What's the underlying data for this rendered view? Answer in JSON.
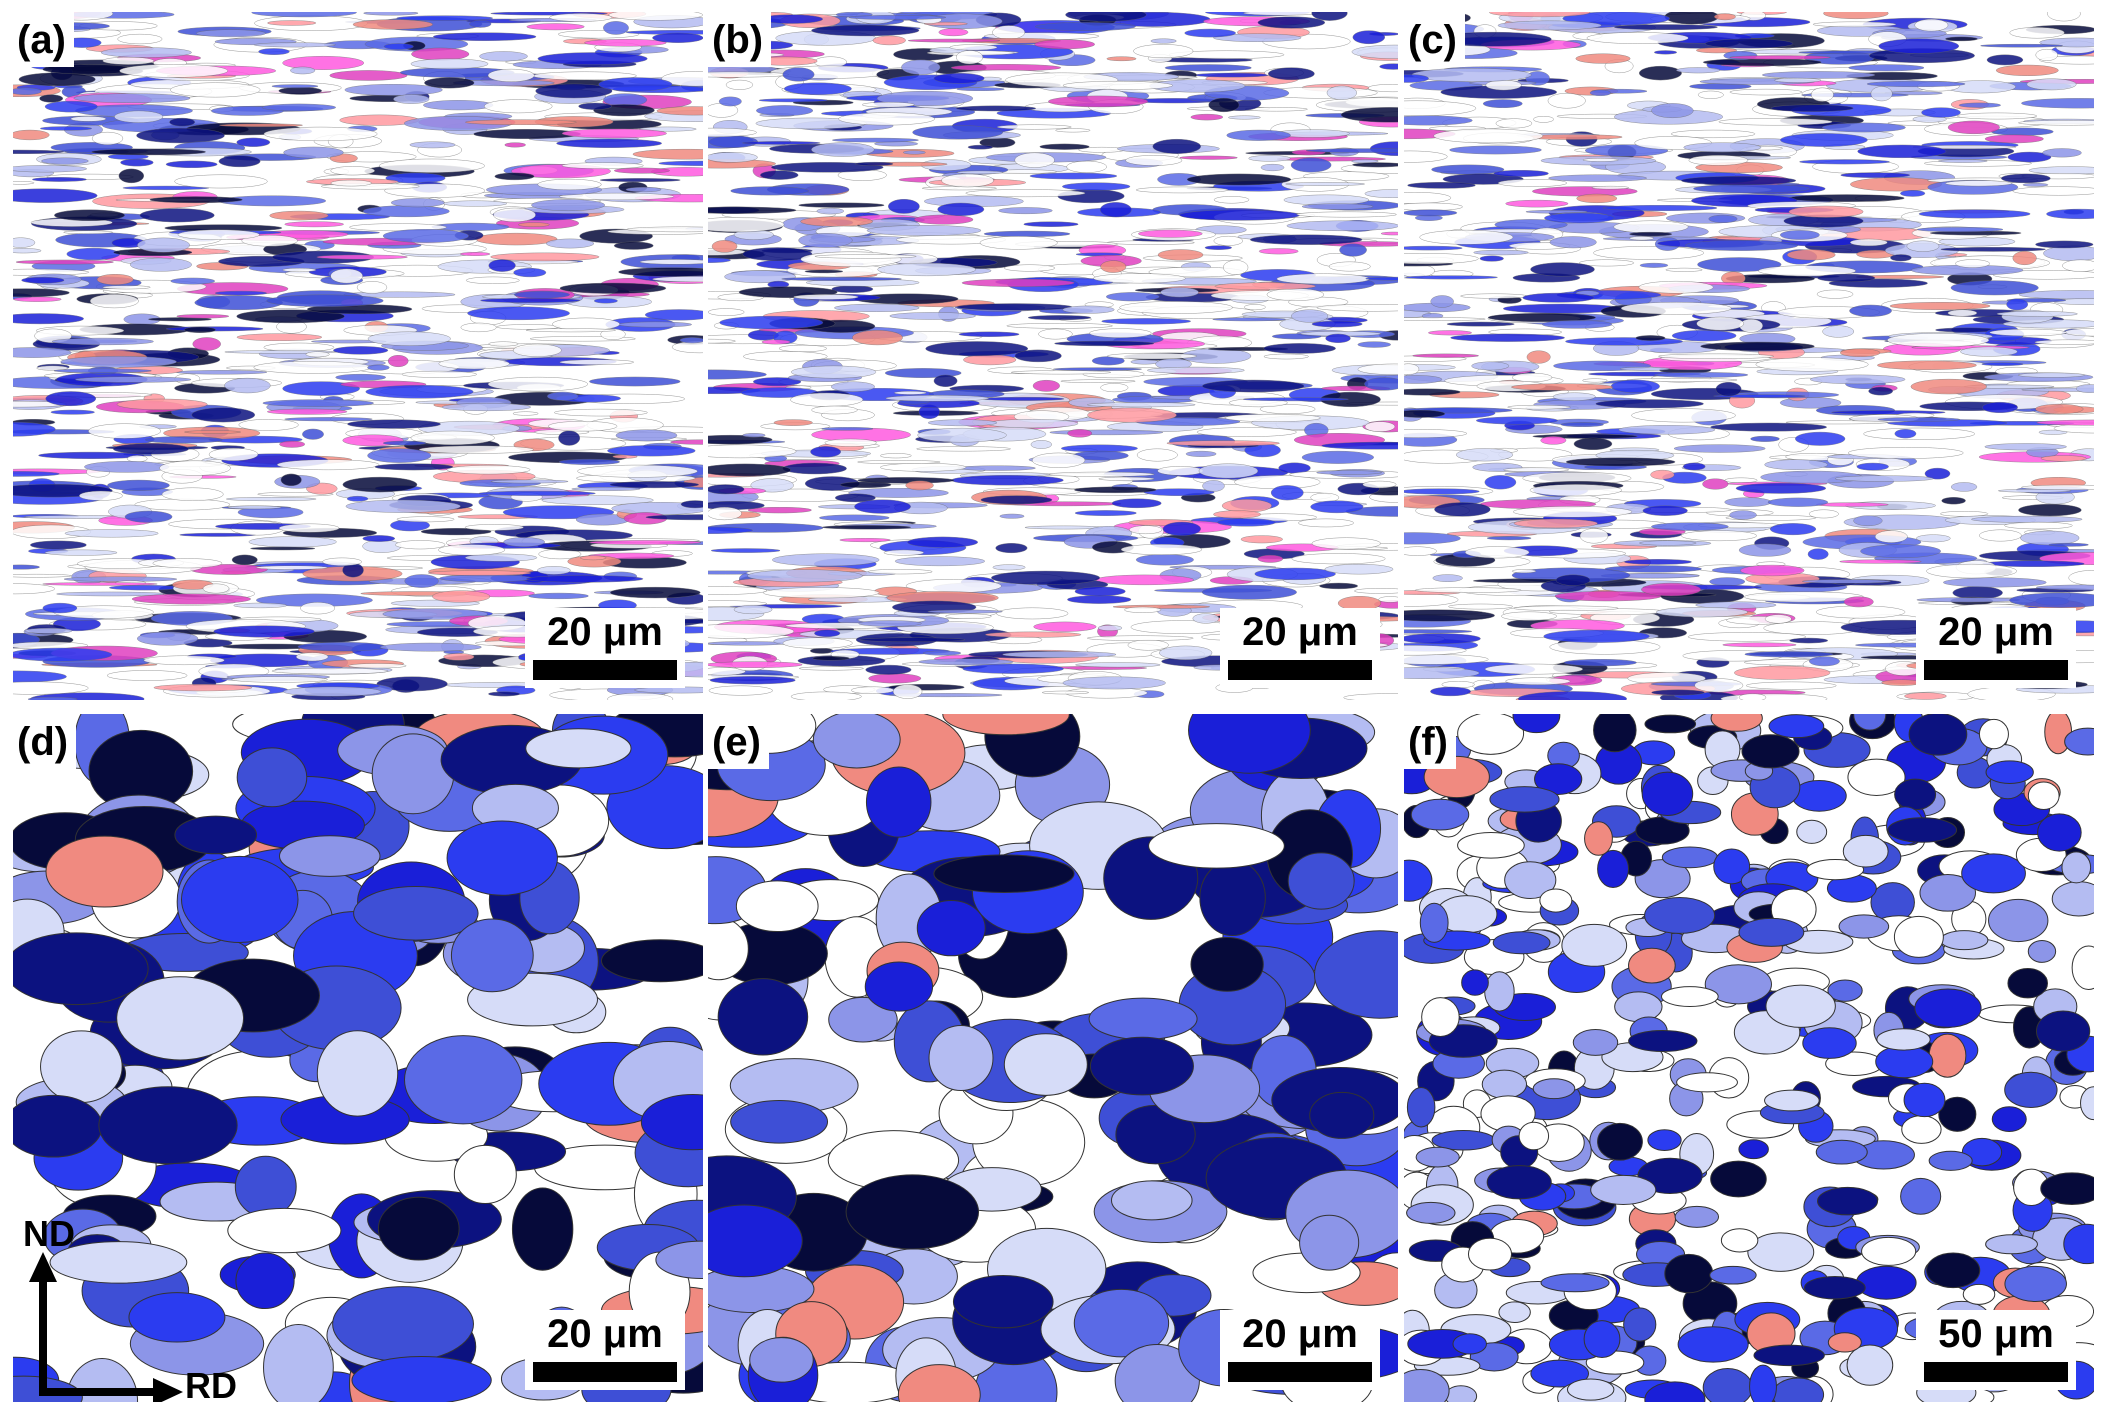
{
  "panels": [
    {
      "label": "(a)",
      "scale": "20 μm"
    },
    {
      "label": "(b)",
      "scale": "20 μm"
    },
    {
      "label": "(c)",
      "scale": "20 μm"
    },
    {
      "label": "(d)",
      "scale": "20 μm"
    },
    {
      "label": "(e)",
      "scale": "20 μm"
    },
    {
      "label": "(f)",
      "scale": "50 μm"
    }
  ],
  "axes": {
    "vertical": "ND",
    "horizontal": "RD"
  }
}
